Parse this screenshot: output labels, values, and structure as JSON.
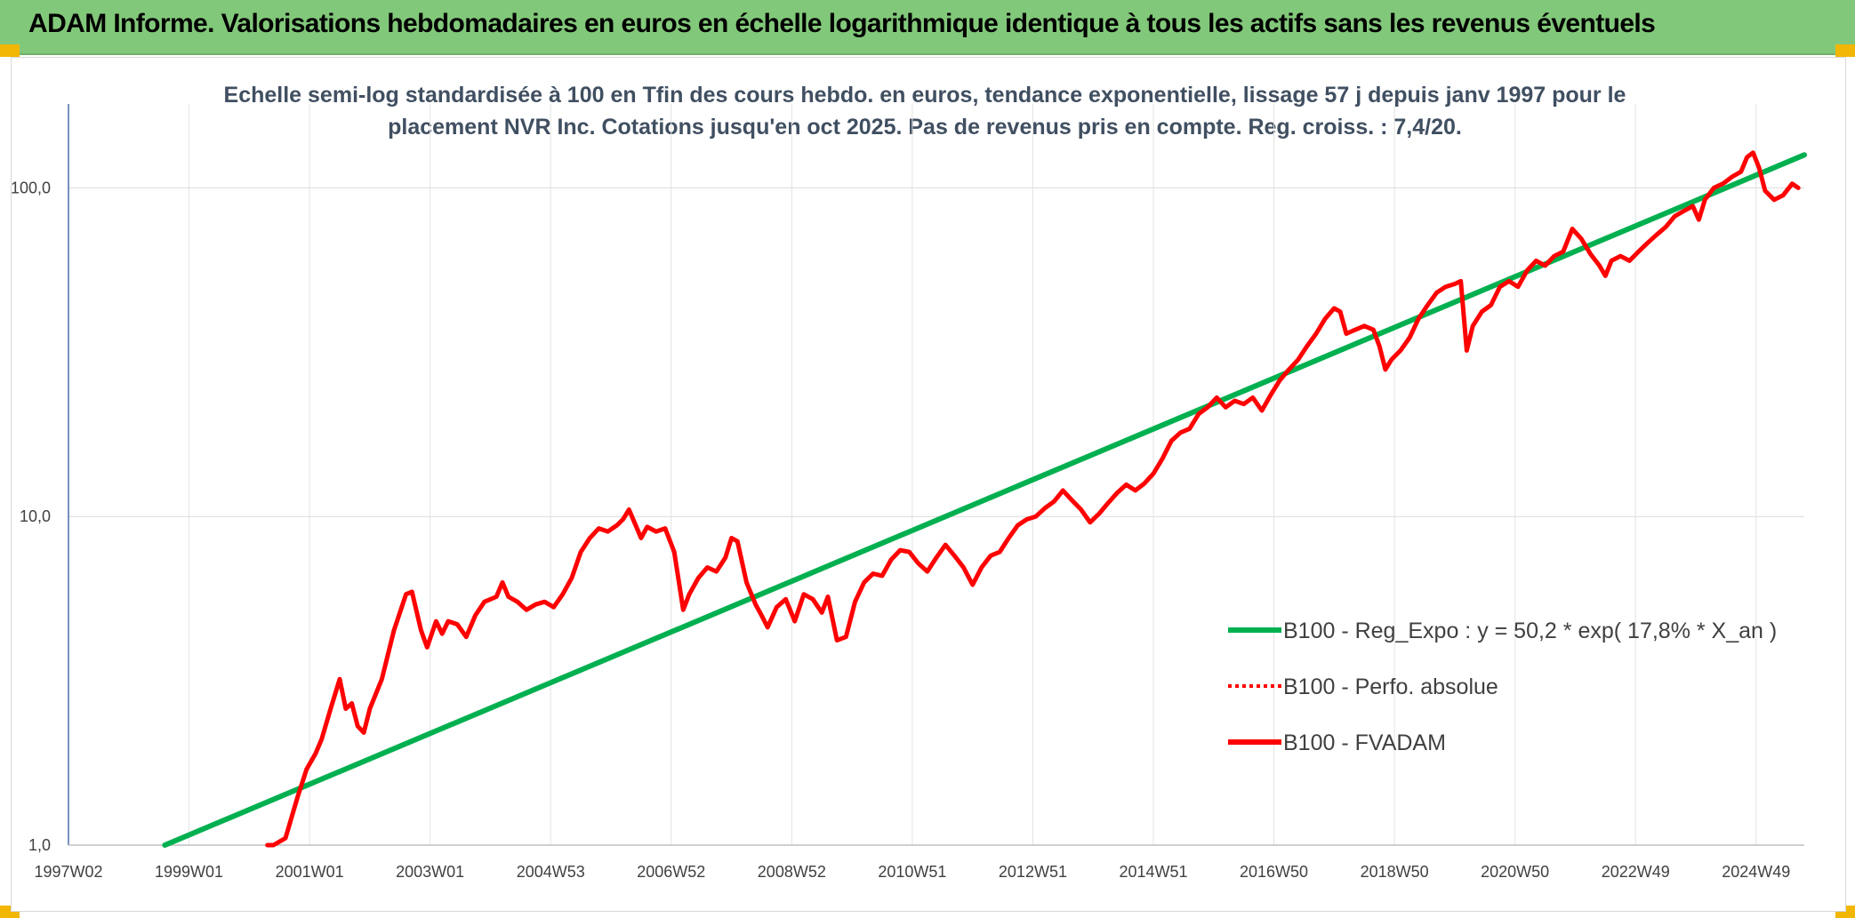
{
  "header": {
    "title": "ADAM Informe. Valorisations hebdomadaires en euros en échelle logarithmique identique à tous les actifs sans les revenus éventuels"
  },
  "colors": {
    "header_bg": "#82c87a",
    "trend": "#00b050",
    "series": "#ff0000",
    "corner": "#f2b705"
  },
  "chart_data": {
    "type": "line",
    "title_lines": [
      "Echelle semi-log standardisée à 100 en Tfin des cours hebdo. en euros, tendance exponentielle, lissage 57 j depuis janv 1997 pour le",
      "placement NVR Inc. Cotations jusqu'en oct 2025. Pas de revenus pris en compte. Reg. croiss. : 7,4/20."
    ],
    "y_scale": "log",
    "ylim": [
      1,
      180
    ],
    "xlim": [
      1997.0,
      2025.8
    ],
    "y_ticks": [
      {
        "value": 1,
        "label": "1,0"
      },
      {
        "value": 10,
        "label": "10,0"
      },
      {
        "value": 100,
        "label": "100,0"
      }
    ],
    "x_ticks": [
      {
        "value": 1997.0,
        "label": "1997W02"
      },
      {
        "value": 1999.0,
        "label": "1999W01"
      },
      {
        "value": 2001.0,
        "label": "2001W01"
      },
      {
        "value": 2003.0,
        "label": "2003W01"
      },
      {
        "value": 2005.0,
        "label": "2004W53"
      },
      {
        "value": 2007.0,
        "label": "2006W52"
      },
      {
        "value": 2009.0,
        "label": "2008W52"
      },
      {
        "value": 2011.0,
        "label": "2010W51"
      },
      {
        "value": 2013.0,
        "label": "2012W51"
      },
      {
        "value": 2015.0,
        "label": "2014W51"
      },
      {
        "value": 2017.0,
        "label": "2016W50"
      },
      {
        "value": 2019.0,
        "label": "2018W50"
      },
      {
        "value": 2021.0,
        "label": "2020W50"
      },
      {
        "value": 2023.0,
        "label": "2022W49"
      },
      {
        "value": 2025.0,
        "label": "2024W49"
      }
    ],
    "grid": "vertical and horizontal",
    "legend_position": "lower-right",
    "series": [
      {
        "name": "B100 - Reg_Expo : y = 50,2 * exp( 17,8% *  X_an )",
        "style": "solid-green-thick",
        "points": [
          [
            1998.6,
            1.0
          ],
          [
            2025.8,
            126
          ]
        ]
      },
      {
        "name": "B100 - Perfo. absolue",
        "style": "dotted-red",
        "points": []
      },
      {
        "name": "B100 - FVADAM",
        "style": "solid-red-thick",
        "points": [
          [
            2000.3,
            1.0
          ],
          [
            2000.4,
            0.95
          ],
          [
            2000.6,
            1.05
          ],
          [
            2000.8,
            1.4
          ],
          [
            2000.95,
            1.7
          ],
          [
            2001.1,
            1.9
          ],
          [
            2001.2,
            2.1
          ],
          [
            2001.35,
            2.6
          ],
          [
            2001.5,
            3.2
          ],
          [
            2001.6,
            2.6
          ],
          [
            2001.7,
            2.7
          ],
          [
            2001.8,
            2.3
          ],
          [
            2001.9,
            2.2
          ],
          [
            2002.0,
            2.6
          ],
          [
            2002.2,
            3.2
          ],
          [
            2002.4,
            4.5
          ],
          [
            2002.6,
            5.8
          ],
          [
            2002.7,
            5.9
          ],
          [
            2002.85,
            4.5
          ],
          [
            2002.95,
            4.0
          ],
          [
            2003.1,
            4.8
          ],
          [
            2003.2,
            4.4
          ],
          [
            2003.3,
            4.8
          ],
          [
            2003.45,
            4.7
          ],
          [
            2003.6,
            4.3
          ],
          [
            2003.75,
            5.0
          ],
          [
            2003.9,
            5.5
          ],
          [
            2004.1,
            5.7
          ],
          [
            2004.2,
            6.3
          ],
          [
            2004.3,
            5.7
          ],
          [
            2004.45,
            5.5
          ],
          [
            2004.6,
            5.2
          ],
          [
            2004.75,
            5.4
          ],
          [
            2004.9,
            5.5
          ],
          [
            2005.05,
            5.3
          ],
          [
            2005.2,
            5.8
          ],
          [
            2005.35,
            6.5
          ],
          [
            2005.5,
            7.8
          ],
          [
            2005.65,
            8.6
          ],
          [
            2005.8,
            9.2
          ],
          [
            2005.95,
            9.0
          ],
          [
            2006.1,
            9.4
          ],
          [
            2006.2,
            9.8
          ],
          [
            2006.3,
            10.5
          ],
          [
            2006.4,
            9.5
          ],
          [
            2006.5,
            8.6
          ],
          [
            2006.6,
            9.3
          ],
          [
            2006.75,
            9.0
          ],
          [
            2006.9,
            9.2
          ],
          [
            2007.05,
            7.8
          ],
          [
            2007.2,
            5.2
          ],
          [
            2007.3,
            5.8
          ],
          [
            2007.45,
            6.5
          ],
          [
            2007.6,
            7.0
          ],
          [
            2007.75,
            6.8
          ],
          [
            2007.9,
            7.5
          ],
          [
            2008.0,
            8.6
          ],
          [
            2008.1,
            8.4
          ],
          [
            2008.25,
            6.3
          ],
          [
            2008.4,
            5.4
          ],
          [
            2008.5,
            5.0
          ],
          [
            2008.6,
            4.6
          ],
          [
            2008.75,
            5.3
          ],
          [
            2008.9,
            5.6
          ],
          [
            2009.05,
            4.8
          ],
          [
            2009.2,
            5.8
          ],
          [
            2009.35,
            5.6
          ],
          [
            2009.5,
            5.1
          ],
          [
            2009.6,
            5.7
          ],
          [
            2009.75,
            4.2
          ],
          [
            2009.9,
            4.3
          ],
          [
            2010.05,
            5.5
          ],
          [
            2010.2,
            6.3
          ],
          [
            2010.35,
            6.7
          ],
          [
            2010.5,
            6.6
          ],
          [
            2010.65,
            7.4
          ],
          [
            2010.8,
            7.9
          ],
          [
            2010.95,
            7.8
          ],
          [
            2011.1,
            7.2
          ],
          [
            2011.25,
            6.8
          ],
          [
            2011.4,
            7.5
          ],
          [
            2011.55,
            8.2
          ],
          [
            2011.7,
            7.6
          ],
          [
            2011.85,
            7.0
          ],
          [
            2012.0,
            6.2
          ],
          [
            2012.15,
            7.0
          ],
          [
            2012.3,
            7.6
          ],
          [
            2012.45,
            7.8
          ],
          [
            2012.6,
            8.6
          ],
          [
            2012.75,
            9.4
          ],
          [
            2012.9,
            9.8
          ],
          [
            2013.05,
            10.0
          ],
          [
            2013.2,
            10.6
          ],
          [
            2013.35,
            11.1
          ],
          [
            2013.5,
            12.0
          ],
          [
            2013.65,
            11.2
          ],
          [
            2013.8,
            10.5
          ],
          [
            2013.95,
            9.6
          ],
          [
            2014.1,
            10.2
          ],
          [
            2014.25,
            11.0
          ],
          [
            2014.4,
            11.8
          ],
          [
            2014.55,
            12.5
          ],
          [
            2014.7,
            12.0
          ],
          [
            2014.85,
            12.6
          ],
          [
            2015.0,
            13.5
          ],
          [
            2015.15,
            15.0
          ],
          [
            2015.3,
            17.0
          ],
          [
            2015.45,
            18.0
          ],
          [
            2015.6,
            18.5
          ],
          [
            2015.75,
            20.5
          ],
          [
            2015.9,
            21.5
          ],
          [
            2016.05,
            23.0
          ],
          [
            2016.2,
            21.5
          ],
          [
            2016.35,
            22.5
          ],
          [
            2016.5,
            22.0
          ],
          [
            2016.65,
            23.0
          ],
          [
            2016.8,
            21.0
          ],
          [
            2016.95,
            23.5
          ],
          [
            2017.1,
            26.0
          ],
          [
            2017.25,
            28.0
          ],
          [
            2017.4,
            30.0
          ],
          [
            2017.55,
            33.0
          ],
          [
            2017.7,
            36.0
          ],
          [
            2017.85,
            40.0
          ],
          [
            2018.0,
            43.0
          ],
          [
            2018.1,
            42.0
          ],
          [
            2018.2,
            36.0
          ],
          [
            2018.35,
            37.0
          ],
          [
            2018.5,
            38.0
          ],
          [
            2018.65,
            37.0
          ],
          [
            2018.75,
            33.0
          ],
          [
            2018.85,
            28.0
          ],
          [
            2018.95,
            30.0
          ],
          [
            2019.1,
            32.0
          ],
          [
            2019.25,
            35.0
          ],
          [
            2019.4,
            40.0
          ],
          [
            2019.55,
            44.0
          ],
          [
            2019.7,
            48.0
          ],
          [
            2019.85,
            50.0
          ],
          [
            2020.0,
            51.0
          ],
          [
            2020.1,
            52.0
          ],
          [
            2020.2,
            32.0
          ],
          [
            2020.3,
            38.0
          ],
          [
            2020.45,
            42.0
          ],
          [
            2020.6,
            44.0
          ],
          [
            2020.75,
            50.0
          ],
          [
            2020.9,
            52.0
          ],
          [
            2021.05,
            50.0
          ],
          [
            2021.2,
            56.0
          ],
          [
            2021.35,
            60.0
          ],
          [
            2021.5,
            58.0
          ],
          [
            2021.65,
            62.0
          ],
          [
            2021.8,
            64.0
          ],
          [
            2021.95,
            75.0
          ],
          [
            2022.1,
            70.0
          ],
          [
            2022.25,
            63.0
          ],
          [
            2022.4,
            58.0
          ],
          [
            2022.5,
            54.0
          ],
          [
            2022.6,
            60.0
          ],
          [
            2022.75,
            62.0
          ],
          [
            2022.9,
            60.0
          ],
          [
            2023.05,
            64.0
          ],
          [
            2023.2,
            68.0
          ],
          [
            2023.35,
            72.0
          ],
          [
            2023.5,
            76.0
          ],
          [
            2023.65,
            82.0
          ],
          [
            2023.8,
            85.0
          ],
          [
            2023.95,
            88.0
          ],
          [
            2024.05,
            80.0
          ],
          [
            2024.15,
            92.0
          ],
          [
            2024.3,
            100.0
          ],
          [
            2024.45,
            103.0
          ],
          [
            2024.6,
            108.0
          ],
          [
            2024.75,
            112.0
          ],
          [
            2024.85,
            124.0
          ],
          [
            2024.95,
            128.0
          ],
          [
            2025.05,
            115.0
          ],
          [
            2025.15,
            98.0
          ],
          [
            2025.3,
            92.0
          ],
          [
            2025.45,
            95.0
          ],
          [
            2025.6,
            103.0
          ],
          [
            2025.7,
            100.0
          ]
        ]
      }
    ]
  }
}
